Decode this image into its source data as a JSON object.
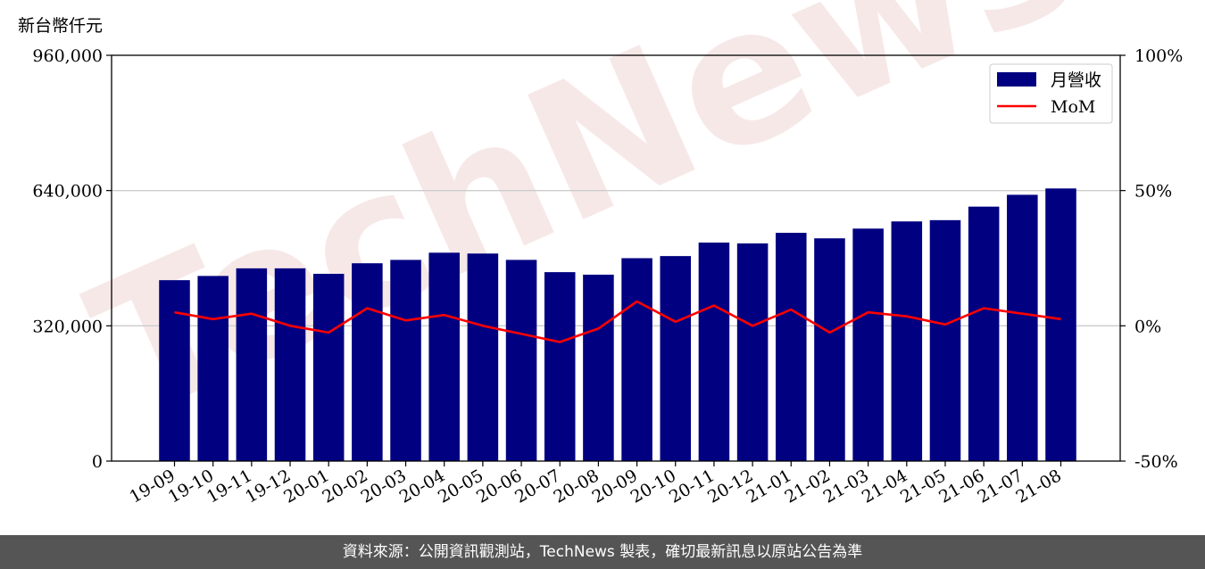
{
  "unit_label": "新台幣仟元",
  "footer_text": "資料來源：公開資訊觀測站，TechNews 製表，確切最新訊息以原站公告為準",
  "watermark": "TechNews",
  "colors": {
    "bar": "#000080",
    "line": "#ff0000",
    "grid": "#cccccc",
    "footer_bg": "#555555"
  },
  "chart_data": {
    "type": "bar",
    "categories": [
      "19-09",
      "19-10",
      "19-11",
      "19-12",
      "20-01",
      "20-02",
      "20-03",
      "20-04",
      "20-05",
      "20-06",
      "20-07",
      "20-08",
      "20-09",
      "20-10",
      "20-11",
      "20-12",
      "21-01",
      "21-02",
      "21-03",
      "21-04",
      "21-05",
      "21-06",
      "21-07",
      "21-08"
    ],
    "series": [
      {
        "name": "月營收",
        "type": "bar",
        "axis": "left",
        "values": [
          428000,
          438000,
          456000,
          456000,
          443000,
          468000,
          476000,
          493000,
          491000,
          476000,
          447000,
          441000,
          480000,
          485000,
          517000,
          515000,
          540000,
          527000,
          550000,
          567000,
          570000,
          602000,
          630000,
          645000
        ]
      },
      {
        "name": "MoM",
        "type": "line",
        "axis": "right",
        "values": [
          5.0,
          2.5,
          4.5,
          0.0,
          -2.5,
          6.5,
          2.0,
          4.0,
          0.0,
          -3.0,
          -6.0,
          -1.0,
          9.0,
          1.5,
          7.5,
          0.0,
          6.0,
          -2.5,
          5.0,
          3.5,
          0.5,
          6.5,
          4.5,
          2.5
        ]
      }
    ],
    "y_left": {
      "min": 0,
      "max": 960000,
      "ticks": [
        "0",
        "320,000",
        "640,000",
        "960,000"
      ],
      "tick_values": [
        0,
        320000,
        640000,
        960000
      ]
    },
    "y_right": {
      "min": -50,
      "max": 100,
      "ticks": [
        "-50%",
        "0%",
        "50%",
        "100%"
      ],
      "tick_values": [
        -50,
        0,
        50,
        100
      ]
    },
    "grid": "horizontal",
    "legend_position": "top-right"
  }
}
